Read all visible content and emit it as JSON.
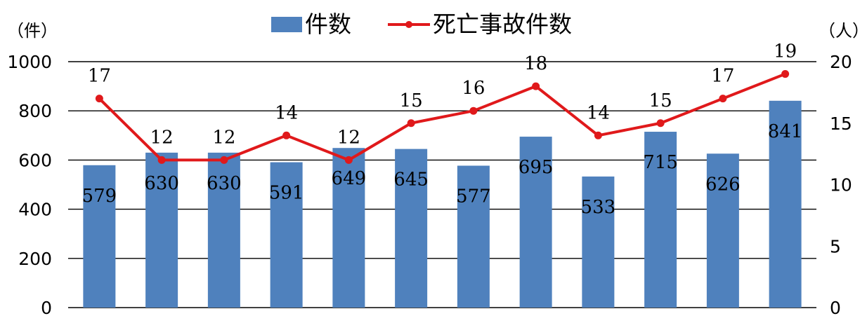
{
  "chart_data": {
    "type": "bar",
    "categories": [
      "",
      "",
      "",
      "",
      "",
      "",
      "",
      "",
      "",
      "",
      "",
      ""
    ],
    "series": [
      {
        "name": "件数",
        "type": "bar",
        "axis": "left",
        "color": "#4f81bd",
        "values": [
          579,
          630,
          630,
          591,
          649,
          645,
          577,
          695,
          533,
          715,
          626,
          841
        ]
      },
      {
        "name": "死亡事故件数",
        "type": "line",
        "axis": "right",
        "color": "#e0191b",
        "values": [
          17,
          12,
          12,
          14,
          12,
          15,
          16,
          18,
          14,
          15,
          17,
          19
        ]
      }
    ],
    "y_left": {
      "unit": "（件）",
      "ylim": [
        0,
        1000
      ],
      "ticks": [
        0,
        200,
        400,
        600,
        800,
        1000
      ]
    },
    "y_right": {
      "unit": "（人）",
      "ylim": [
        0,
        20
      ],
      "ticks": [
        0,
        5,
        10,
        15,
        20
      ]
    },
    "grid": true,
    "legend": {
      "position": "top",
      "items": [
        "件数",
        "死亡事故件数"
      ]
    }
  }
}
